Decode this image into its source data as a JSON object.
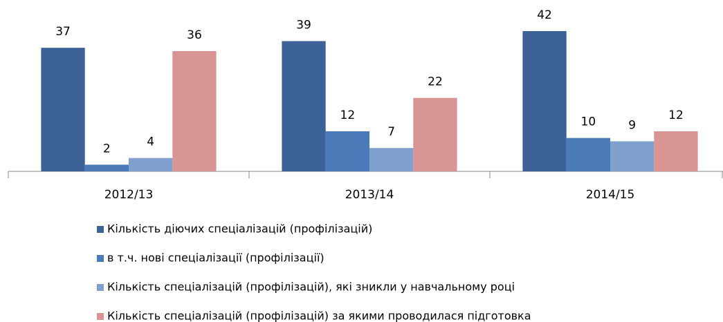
{
  "chart_data": {
    "type": "bar",
    "categories": [
      "2012/13",
      "2013/14",
      "2014/15"
    ],
    "series": [
      {
        "name": "Кількість діючих спеціалізацій (профілізацій)",
        "color": "#3c6196",
        "values": [
          37,
          39,
          42
        ]
      },
      {
        "name": "в т.ч. нові спеціалізації (профілізації)",
        "color": "#4a7ab7",
        "values": [
          2,
          12,
          10
        ]
      },
      {
        "name": "Кількість спеціалізацій  (профілізацій), які зникли у навчальному році",
        "color": "#7f9fcc",
        "values": [
          4,
          7,
          9
        ]
      },
      {
        "name": "Кількість спеціалізацій  (профілізацій) за якими проводилася підготовка",
        "color": "#d99594",
        "values": [
          36,
          22,
          12
        ]
      }
    ]
  }
}
